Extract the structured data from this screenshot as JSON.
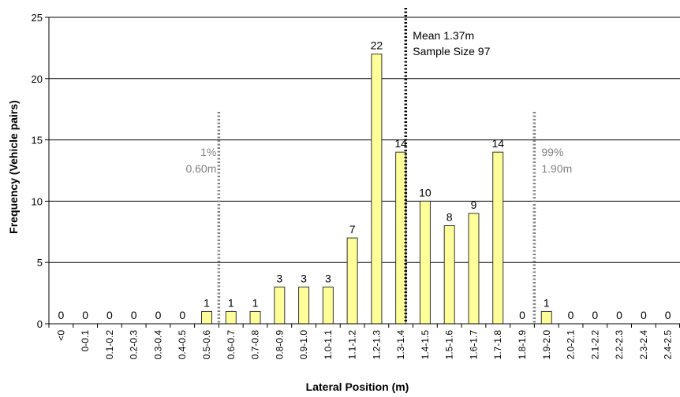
{
  "chart_data": {
    "type": "bar",
    "xlabel": "Lateral Position (m)",
    "ylabel": "Frequency (Vehicle pairs)",
    "ylim": [
      0,
      25
    ],
    "yticks": [
      0,
      5,
      10,
      15,
      20,
      25
    ],
    "grid": true,
    "categories": [
      "<0",
      "0-0.1",
      "0.1-0.2",
      "0.2-0.3",
      "0.3-0.4",
      "0.4-0.5",
      "0.5-0.6",
      "0.6-0.7",
      "0.7-0.8",
      "0.8-0.9",
      "0.9-1.0",
      "1.0-1.1",
      "1.1-1.2",
      "1.2-1.3",
      "1.3-1.4",
      "1.4-1.5",
      "1.5-1.6",
      "1.6-1.7",
      "1.7-1.8",
      "1.8-1.9",
      "1.9-2.0",
      "2.0-2.1",
      "2.1-2.2",
      "2.2-2.3",
      "2.3-2.4",
      "2.4-2.5"
    ],
    "values": [
      0,
      0,
      0,
      0,
      0,
      0,
      1,
      1,
      1,
      3,
      3,
      3,
      7,
      22,
      14,
      10,
      8,
      9,
      14,
      0,
      1,
      0,
      0,
      0,
      0,
      0
    ],
    "bar_color": "#ffff99",
    "bar_edge_color": "#333333",
    "reference_lines": [
      {
        "name": "mean",
        "x": 1.37,
        "style": "dotted",
        "color": "#000000",
        "labels": [
          "Mean 1.37m",
          "Sample Size 97"
        ]
      },
      {
        "name": "p1",
        "x": 0.6,
        "style": "dotted",
        "color": "#808080",
        "labels": [
          "1%",
          "0.60m"
        ]
      },
      {
        "name": "p99",
        "x": 1.9,
        "style": "dotted",
        "color": "#808080",
        "labels": [
          "99%",
          "1.90m"
        ]
      }
    ]
  }
}
